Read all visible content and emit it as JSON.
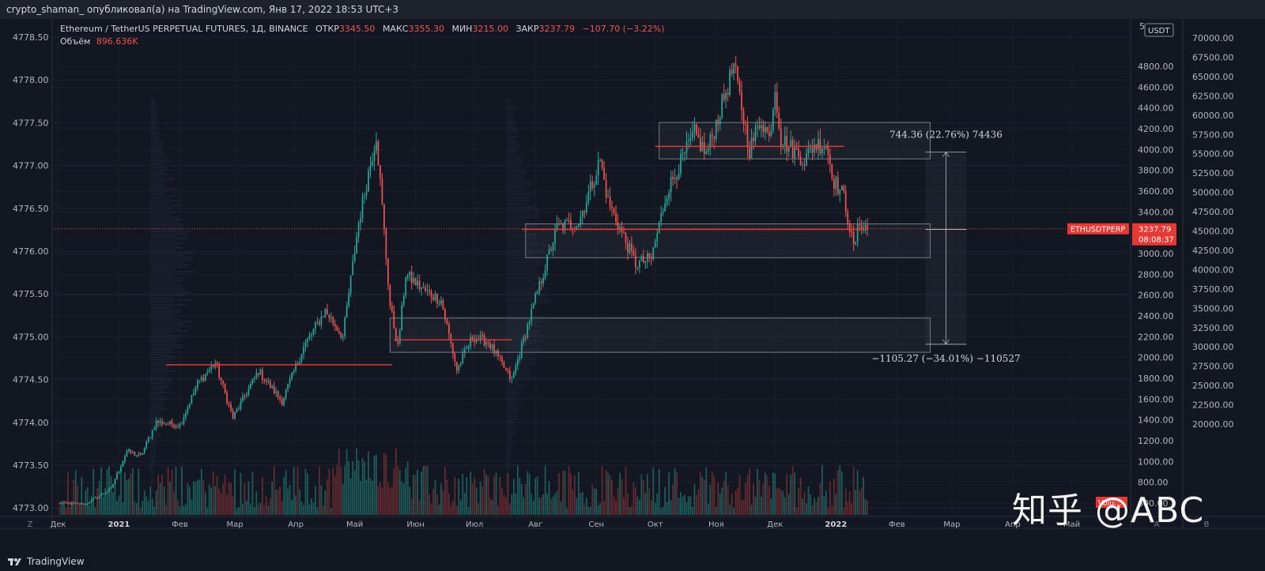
{
  "header": {
    "publisher_line": "crypto_shaman_ опубликовал(а) на TradingView.com, Янв 17, 2022 18:53 UTC+3"
  },
  "legend": {
    "symbol": "Ethereum / TetherUS PERPETUAL FUTURES, 1Д, BINANCE",
    "open_label": "ОТКР",
    "open": "3345.50",
    "high_label": "МАКС",
    "high": "3355.30",
    "low_label": "МИН",
    "low": "3215.00",
    "close_label": "ЗАКР",
    "close": "3237.79",
    "change": "−107.70 (−3.22%)",
    "volume_label": "Объём",
    "volume": "896.636K"
  },
  "right_scale": {
    "currency": "USDT",
    "top_marker": "5"
  },
  "price_tag": {
    "symbol": "ETHUSDTPERP",
    "price": "3237.79",
    "countdown": "08:08:37"
  },
  "volume_tag": "Volu...",
  "corners": {
    "bottom_left": "Z",
    "mid_a": "A",
    "mid_b": "B"
  },
  "footer": {
    "brand": "TradingView"
  },
  "watermark": "知乎 @ABC",
  "colors": {
    "up": "#26a69a",
    "down": "#ef5350",
    "volume_up": "#1f6f6a",
    "volume_down": "#7a2f33",
    "level": "#e53935",
    "background": "#131722"
  },
  "chart_data": {
    "type": "candlestick",
    "symbol": "ETHUSDTPERP",
    "x_ticks": [
      "Дек",
      "2021",
      "Фев",
      "Мар",
      "Апр",
      "Май",
      "Июн",
      "Июл",
      "Авг",
      "Сен",
      "Окт",
      "Ноя",
      "Дек",
      "2022",
      "Фев",
      "Мар",
      "Апр",
      "Май"
    ],
    "y_ticks_main": [
      4800,
      4600,
      4400,
      4200,
      4000,
      3800,
      3600,
      3400,
      3000,
      2800,
      2600,
      2400,
      2200,
      2000,
      1800,
      1600,
      1400,
      1200,
      1000,
      800,
      600
    ],
    "y_ticks_left": [
      "4778.50",
      "4778.00",
      "4777.50",
      "4777.00",
      "4776.50",
      "4776.00",
      "4775.50",
      "4775.00",
      "4774.50",
      "4774.00",
      "4773.50",
      "4773.00"
    ],
    "y_ticks_right": [
      "70000.00",
      "67500.00",
      "65000.00",
      "62500.00",
      "60000.00",
      "57500.00",
      "55000.00",
      "52500.00",
      "50000.00",
      "47500.00",
      "45000.00",
      "42500.00",
      "40000.00",
      "37500.00",
      "35000.00",
      "32500.00",
      "30000.00",
      "27500.00",
      "25000.00",
      "22500.00",
      "20000.00"
    ],
    "ylim": [
      560,
      5000
    ],
    "anchors": [
      [
        "2020-12-01",
        600
      ],
      [
        "2020-12-15",
        590
      ],
      [
        "2020-12-28",
        740
      ],
      [
        "2021-01-05",
        1100
      ],
      [
        "2021-01-12",
        1050
      ],
      [
        "2021-01-20",
        1380
      ],
      [
        "2021-02-01",
        1350
      ],
      [
        "2021-02-10",
        1750
      ],
      [
        "2021-02-19",
        1950
      ],
      [
        "2021-02-28",
        1420
      ],
      [
        "2021-03-13",
        1870
      ],
      [
        "2021-03-25",
        1580
      ],
      [
        "2021-04-05",
        2100
      ],
      [
        "2021-04-16",
        2450
      ],
      [
        "2021-04-25",
        2200
      ],
      [
        "2021-05-03",
        3300
      ],
      [
        "2021-05-12",
        4150
      ],
      [
        "2021-05-19",
        2500
      ],
      [
        "2021-05-23",
        2100
      ],
      [
        "2021-05-27",
        2800
      ],
      [
        "2021-06-05",
        2650
      ],
      [
        "2021-06-14",
        2550
      ],
      [
        "2021-06-22",
        1880
      ],
      [
        "2021-06-30",
        2200
      ],
      [
        "2021-07-08",
        2150
      ],
      [
        "2021-07-20",
        1780
      ],
      [
        "2021-07-31",
        2500
      ],
      [
        "2021-08-12",
        3250
      ],
      [
        "2021-08-23",
        3300
      ],
      [
        "2021-09-03",
        3900
      ],
      [
        "2021-09-07",
        3500
      ],
      [
        "2021-09-21",
        2900
      ],
      [
        "2021-09-29",
        2950
      ],
      [
        "2021-10-07",
        3600
      ],
      [
        "2021-10-21",
        4150
      ],
      [
        "2021-10-27",
        3950
      ],
      [
        "2021-11-10",
        4800
      ],
      [
        "2021-11-18",
        4000
      ],
      [
        "2021-11-24",
        4300
      ],
      [
        "2021-11-28",
        4100
      ],
      [
        "2021-12-01",
        4600
      ],
      [
        "2021-12-04",
        4100
      ],
      [
        "2021-12-10",
        4000
      ],
      [
        "2021-12-16",
        3900
      ],
      [
        "2021-12-21",
        4050
      ],
      [
        "2021-12-27",
        4050
      ],
      [
        "2021-12-31",
        3700
      ],
      [
        "2022-01-05",
        3550
      ],
      [
        "2022-01-10",
        3050
      ],
      [
        "2022-01-13",
        3300
      ],
      [
        "2022-01-17",
        3238
      ]
    ],
    "levels": [
      {
        "from": "2021-01-25",
        "to": "2021-05-20",
        "price": 1930
      },
      {
        "from": "2021-05-21",
        "to": "2021-07-20",
        "price": 2170
      },
      {
        "from": "2021-07-25",
        "to": "2022-01-17",
        "price": 3232
      },
      {
        "from": "2021-10-01",
        "to": "2022-01-05",
        "price": 4030
      }
    ],
    "zones": [
      {
        "from": "2021-05-19",
        "to": "2022-02-18",
        "low": 2050,
        "high": 2380
      },
      {
        "from": "2021-07-27",
        "to": "2022-02-18",
        "low": 2960,
        "high": 3285
      },
      {
        "from": "2021-10-03",
        "to": "2022-02-18",
        "low": 3910,
        "high": 4260
      }
    ],
    "measures": [
      {
        "date": "2022-02-26",
        "from": 3232,
        "to": 3976,
        "label": "744.36 (22.76%) 74436"
      },
      {
        "date": "2022-02-26",
        "from": 3232,
        "to": 2127,
        "label": "−1105.27 (−34.01%) −110527"
      }
    ],
    "last_price": 3237.79
  }
}
